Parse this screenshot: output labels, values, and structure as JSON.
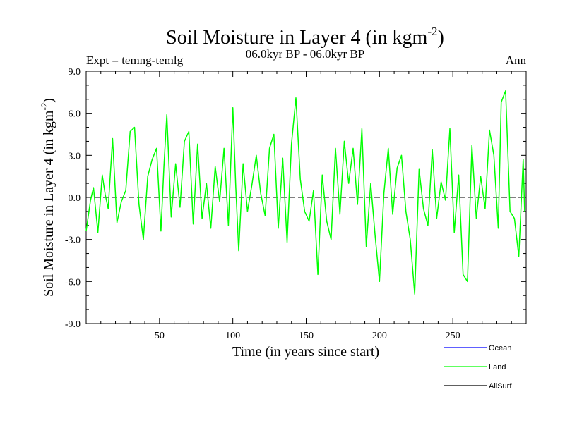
{
  "chart_data": {
    "type": "line",
    "title": "Soil Moisture in Layer 4 (in kgm",
    "title_superscript": "-2",
    "title_close": ")",
    "subtitle": "06.0kyr BP - 06.0kyr BP",
    "left_label": "Expt = temng-temlg",
    "right_label": "Ann",
    "xlabel": "Time (in years since start)",
    "ylabel": "Soil Moisture in Layer 4 (in kgm",
    "ylabel_superscript": "-2",
    "ylabel_close": ")",
    "xlim": [
      0,
      300
    ],
    "ylim": [
      -9,
      9
    ],
    "x_ticks": [
      50,
      100,
      150,
      200,
      250
    ],
    "x_tick_labels": [
      "50",
      "100",
      "150",
      "200",
      "250"
    ],
    "y_ticks": [
      -9,
      -6,
      -3,
      0,
      3,
      6,
      9
    ],
    "y_tick_labels": [
      "-9.0",
      "-6.0",
      "-3.0",
      "0.0",
      "3.0",
      "6.0",
      "9.0"
    ],
    "zero_line": true,
    "legend": [
      {
        "name": "Ocean",
        "color": "#0000ff"
      },
      {
        "name": "Land",
        "color": "#00ff00"
      },
      {
        "name": "AllSurf",
        "color": "#000000"
      }
    ],
    "series": [
      {
        "name": "Land",
        "color": "#00ff00",
        "x": [
          0,
          3,
          5,
          8,
          11,
          13,
          15,
          18,
          21,
          24,
          27,
          30,
          33,
          36,
          39,
          42,
          45,
          48,
          51,
          53,
          55,
          58,
          61,
          64,
          67,
          70,
          73,
          76,
          79,
          82,
          85,
          88,
          91,
          94,
          97,
          100,
          102,
          104,
          107,
          110,
          113,
          116,
          119,
          122,
          125,
          128,
          131,
          134,
          137,
          140,
          143,
          146,
          149,
          152,
          155,
          158,
          161,
          164,
          167,
          170,
          173,
          176,
          179,
          182,
          185,
          188,
          191,
          194,
          197,
          200,
          203,
          206,
          209,
          212,
          215,
          218,
          221,
          224,
          227,
          230,
          233,
          236,
          239,
          242,
          245,
          248,
          251,
          254,
          257,
          260,
          263,
          266,
          269,
          272,
          275,
          278,
          281,
          283,
          286,
          289,
          292,
          295,
          298,
          299
        ],
        "values": [
          -2.4,
          -0.2,
          0.7,
          -2.5,
          1.6,
          0.2,
          -0.8,
          4.2,
          -1.8,
          -0.3,
          0.5,
          4.7,
          5.0,
          -0.5,
          -3.0,
          1.5,
          2.7,
          3.5,
          -2.4,
          2.2,
          5.9,
          -1.4,
          2.4,
          -0.7,
          4.0,
          4.7,
          -1.9,
          3.8,
          -1.5,
          1.0,
          -2.2,
          2.2,
          -0.3,
          3.5,
          -2.0,
          6.4,
          0.8,
          -3.8,
          2.4,
          -1.0,
          0.9,
          3.0,
          0.3,
          -1.3,
          3.5,
          4.5,
          -2.2,
          2.8,
          -3.2,
          3.8,
          7.1,
          1.3,
          -1.0,
          -1.7,
          0.5,
          -5.5,
          1.6,
          -1.7,
          -3.0,
          3.5,
          -1.2,
          4.0,
          1.0,
          3.5,
          -0.5,
          4.9,
          -3.5,
          1.0,
          -2.7,
          -6.0,
          0.3,
          3.5,
          -1.2,
          2.1,
          3.0,
          -1.0,
          -3.0,
          -6.9,
          2.0,
          -0.8,
          -2.0,
          3.4,
          -1.5,
          1.1,
          -0.2,
          4.9,
          -2.5,
          1.6,
          -5.5,
          -6.0,
          3.7,
          -1.5,
          1.5,
          -0.8,
          4.8,
          3.0,
          -2.2,
          6.8,
          7.6,
          -1.0,
          -1.5,
          -4.2,
          2.7,
          -1.0
        ]
      }
    ]
  }
}
